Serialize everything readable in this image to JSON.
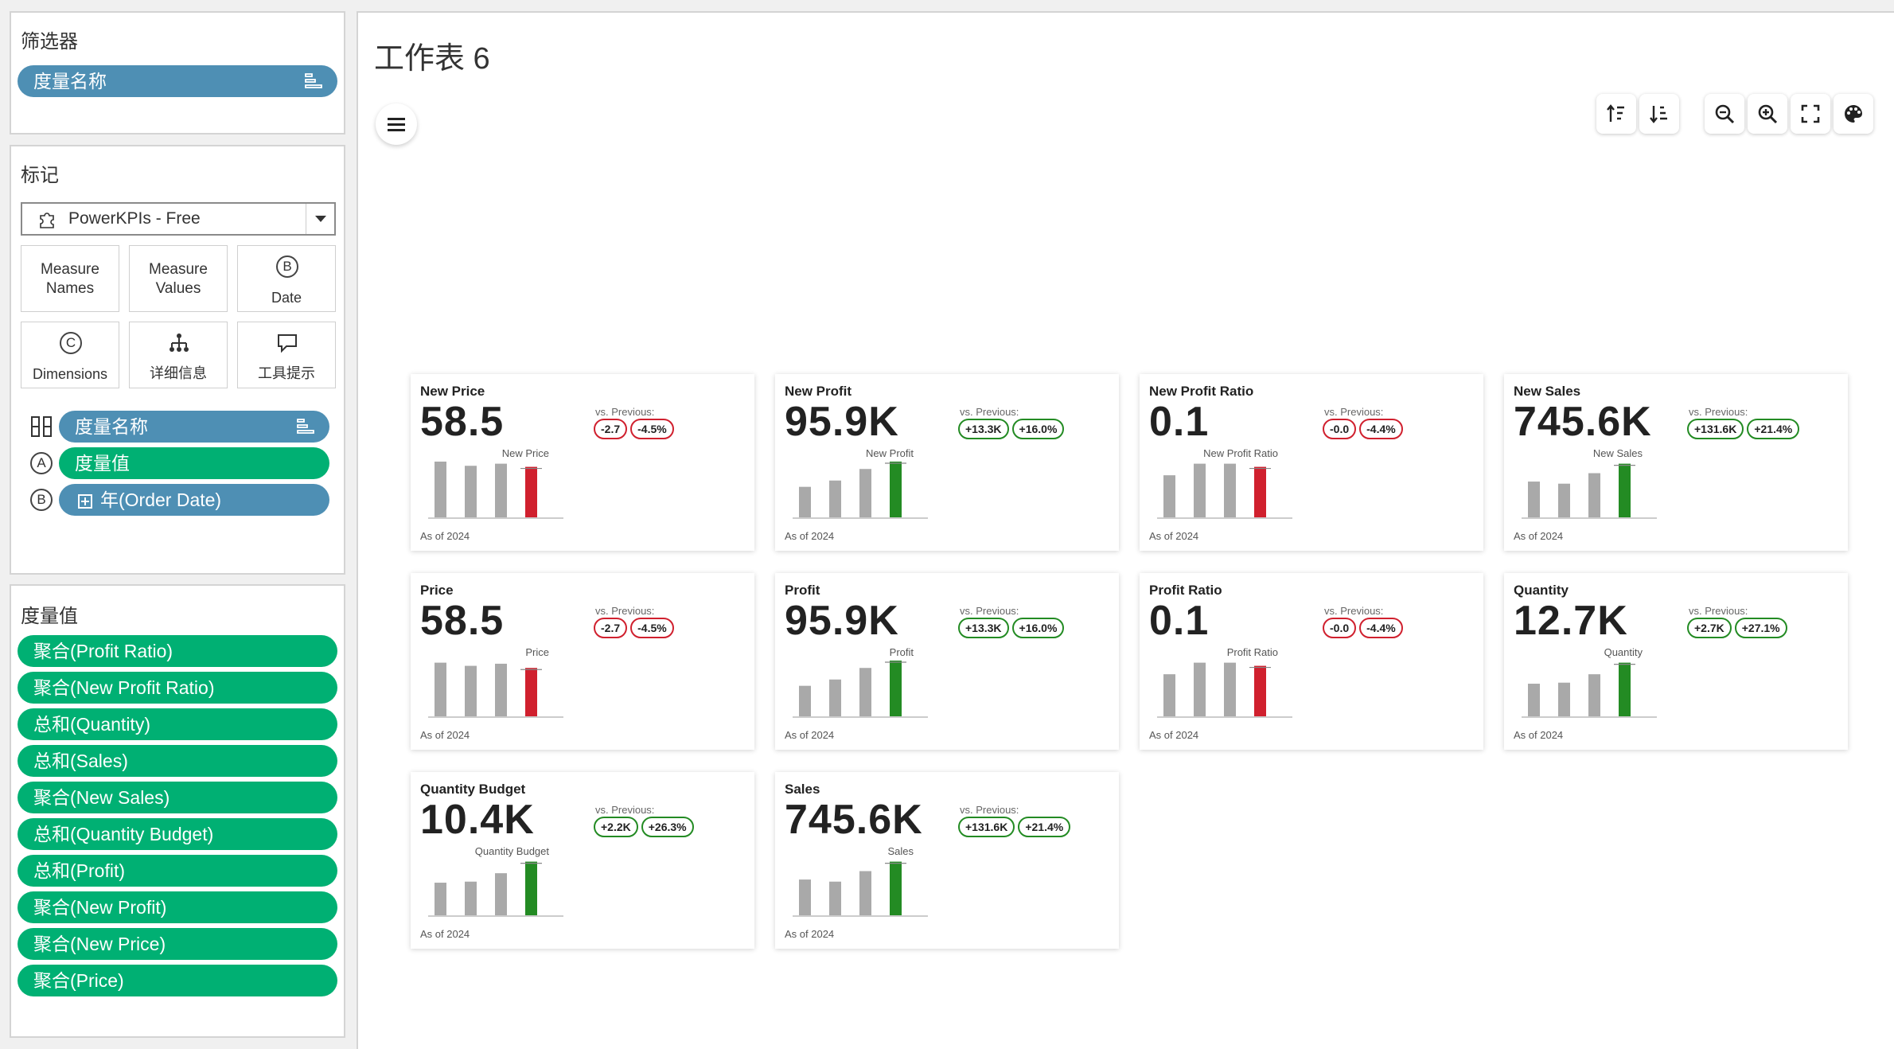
{
  "filters": {
    "title": "筛选器",
    "pills": [
      {
        "label": "度量名称"
      }
    ]
  },
  "marks": {
    "title": "标记",
    "type_selected": "PowerKPIs - Free",
    "buttons": [
      {
        "label": "Measure\nNames"
      },
      {
        "label": "Measure\nValues"
      },
      {
        "label": "Date",
        "icon_letter": "B"
      },
      {
        "label": "Dimensions",
        "icon_letter": "C"
      },
      {
        "label": "详细信息"
      },
      {
        "label": "工具提示"
      }
    ],
    "encodings": [
      {
        "icon": "columns-icon",
        "label": "度量名称",
        "color": "blue"
      },
      {
        "icon_letter": "A",
        "label": "度量值",
        "color": "green"
      },
      {
        "icon_letter": "B",
        "label": "年(Order Date)",
        "color": "blue"
      }
    ]
  },
  "measure_values": {
    "title": "度量值",
    "pills": [
      "聚合(Profit Ratio)",
      "聚合(New Profit Ratio)",
      "总和(Quantity)",
      "总和(Sales)",
      "聚合(New Sales)",
      "总和(Quantity Budget)",
      "总和(Profit)",
      "聚合(New Profit)",
      "聚合(New Price)",
      "聚合(Price)"
    ]
  },
  "worksheet": {
    "title": "工作表 6",
    "toolbar": [
      "sort-ascending-icon",
      "sort-descending-icon",
      "zoom-out-icon",
      "zoom-in-icon",
      "fullscreen-icon",
      "palette-icon"
    ]
  },
  "colors": {
    "blue_pill": "#4e8fb4",
    "green_pill": "#00b073",
    "bar_gray": "#a9a9a9",
    "bar_red": "#d0202e",
    "bar_green": "#238b23"
  },
  "kpis": [
    {
      "title": "New Price",
      "value": "58.5",
      "vs_label": "vs. Previous:",
      "changes": [
        "-2.7",
        "-4.5%"
      ],
      "trend": "neg",
      "chart_label": "New Price",
      "as_of": "As of 2024",
      "bars": [
        5.3,
        4.9,
        5.1,
        4.8
      ]
    },
    {
      "title": "New Profit",
      "value": "95.9K",
      "vs_label": "vs. Previous:",
      "changes": [
        "+13.3K",
        "+16.0%"
      ],
      "trend": "pos",
      "chart_label": "New Profit",
      "as_of": "As of 2024",
      "bars": [
        2.9,
        3.5,
        4.6,
        5.3
      ]
    },
    {
      "title": "New Profit Ratio",
      "value": "0.1",
      "vs_label": "vs. Previous:",
      "changes": [
        "-0.0",
        "-4.4%"
      ],
      "trend": "neg",
      "chart_label": "New Profit Ratio",
      "as_of": "As of 2024",
      "bars": [
        4.0,
        5.1,
        5.1,
        4.8
      ]
    },
    {
      "title": "New Sales",
      "value": "745.6K",
      "vs_label": "vs. Previous:",
      "changes": [
        "+131.6K",
        "+21.4%"
      ],
      "trend": "pos",
      "chart_label": "New Sales",
      "as_of": "As of 2024",
      "bars": [
        3.4,
        3.2,
        4.2,
        5.1
      ]
    },
    {
      "title": "Price",
      "value": "58.5",
      "vs_label": "vs. Previous:",
      "changes": [
        "-2.7",
        "-4.5%"
      ],
      "trend": "neg",
      "chart_label": "Price",
      "as_of": "As of 2024",
      "bars": [
        5.1,
        4.8,
        5.0,
        4.6
      ]
    },
    {
      "title": "Profit",
      "value": "95.9K",
      "vs_label": "vs. Previous:",
      "changes": [
        "+13.3K",
        "+16.0%"
      ],
      "trend": "pos",
      "chart_label": "Profit",
      "as_of": "As of 2024",
      "bars": [
        2.9,
        3.5,
        4.6,
        5.3
      ]
    },
    {
      "title": "Profit Ratio",
      "value": "0.1",
      "vs_label": "vs. Previous:",
      "changes": [
        "-0.0",
        "-4.4%"
      ],
      "trend": "neg",
      "chart_label": "Profit Ratio",
      "as_of": "As of 2024",
      "bars": [
        4.0,
        5.1,
        5.1,
        4.8
      ]
    },
    {
      "title": "Quantity",
      "value": "12.7K",
      "vs_label": "vs. Previous:",
      "changes": [
        "+2.7K",
        "+27.1%"
      ],
      "trend": "pos",
      "chart_label": "Quantity",
      "as_of": "As of 2024",
      "bars": [
        3.1,
        3.2,
        4.0,
        5.1
      ]
    },
    {
      "title": "Quantity Budget",
      "value": "10.4K",
      "vs_label": "vs. Previous:",
      "changes": [
        "+2.2K",
        "+26.3%"
      ],
      "trend": "pos",
      "chart_label": "Quantity Budget",
      "as_of": "As of 2024",
      "bars": [
        3.1,
        3.2,
        4.0,
        5.1
      ]
    },
    {
      "title": "Sales",
      "value": "745.6K",
      "vs_label": "vs. Previous:",
      "changes": [
        "+131.6K",
        "+21.4%"
      ],
      "trend": "pos",
      "chart_label": "Sales",
      "as_of": "As of 2024",
      "bars": [
        3.4,
        3.2,
        4.2,
        5.1
      ]
    }
  ]
}
